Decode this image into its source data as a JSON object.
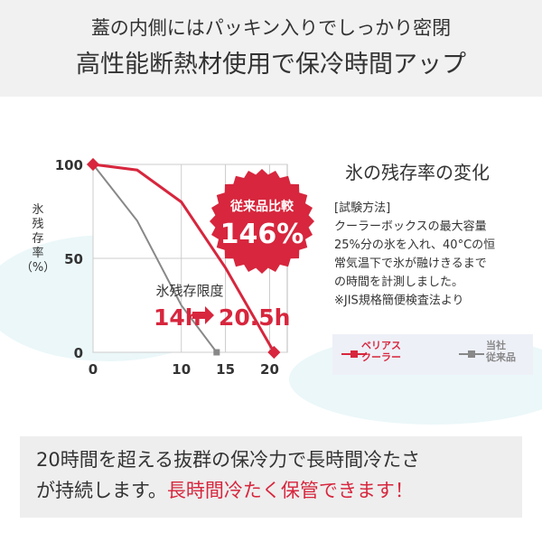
{
  "header": {
    "subtitle": "蓋の内側にはパッキン入りでしっかり密閉",
    "title": "高性能断熱材使用で保冷時間アップ"
  },
  "chart_data": {
    "type": "line",
    "ylabel": "氷\n残\n存\n率\n（%）",
    "series": [
      {
        "name": "ベリアス\nクーラー",
        "color": "#d7263d",
        "x": [
          0,
          5,
          10,
          15,
          20.5
        ],
        "values": [
          100,
          97,
          80,
          45,
          0
        ]
      },
      {
        "name": "当社\n従来品",
        "color": "#888888",
        "x": [
          0,
          5,
          10,
          14
        ],
        "values": [
          100,
          70,
          25,
          0
        ]
      }
    ],
    "xlim": [
      0,
      22
    ],
    "xticks": [
      0,
      10,
      15,
      20
    ],
    "ylim": [
      0,
      100
    ],
    "yticks": [
      0,
      50,
      100
    ],
    "grid": true,
    "annotations": {
      "badge_label": "従来品比較",
      "badge_value": "146%",
      "limit_label": "氷残存限度",
      "from": "14h",
      "to": "20.5h"
    }
  },
  "panel": {
    "title": "氷の残存率の変化",
    "lines": [
      "[試験方法]",
      "クーラーボックスの最大容量",
      "25%分の氷を入れ、40°Cの恒",
      "常気温下で氷が融けきるまで",
      "の時間を計測しました。",
      "※JIS規格簡便検査法より"
    ]
  },
  "footer": {
    "line1": "20時間を超える抜群の保冷力で長時間冷たさ",
    "line2": "が持続します。",
    "highlight": "長時間冷たく保管できます！"
  }
}
